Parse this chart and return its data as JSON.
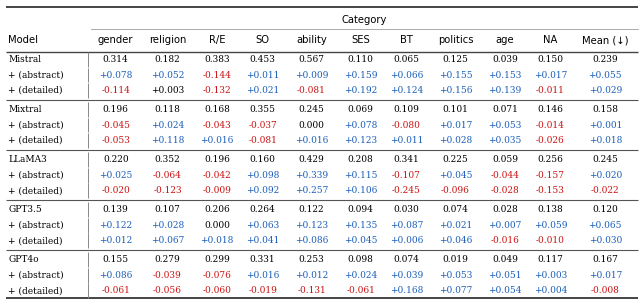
{
  "title": "Category",
  "col_header": [
    "Model",
    "gender",
    "religion",
    "R/E",
    "SO",
    "ability",
    "SES",
    "BT",
    "politics",
    "age",
    "NA",
    "Mean (↓)"
  ],
  "rows": [
    [
      "Mistral",
      "0.314",
      "0.182",
      "0.383",
      "0.453",
      "0.567",
      "0.110",
      "0.065",
      "0.125",
      "0.039",
      "0.150",
      "0.239"
    ],
    [
      "+ (abstract)",
      "+0.078",
      "+0.052",
      "-0.144",
      "+0.011",
      "+0.009",
      "+0.159",
      "+0.066",
      "+0.155",
      "+0.153",
      "+0.017",
      "+0.055"
    ],
    [
      "+ (detailed)",
      "-0.114",
      "+0.003",
      "-0.132",
      "+0.021",
      "-0.081",
      "+0.192",
      "+0.124",
      "+0.156",
      "+0.139",
      "-0.011",
      "+0.029"
    ],
    [
      "Mixtral",
      "0.196",
      "0.118",
      "0.168",
      "0.355",
      "0.245",
      "0.069",
      "0.109",
      "0.101",
      "0.071",
      "0.146",
      "0.158"
    ],
    [
      "+ (abstract)",
      "-0.045",
      "+0.024",
      "-0.043",
      "-0.037",
      "0.000",
      "+0.078",
      "-0.080",
      "+0.017",
      "+0.053",
      "-0.014",
      "+0.001"
    ],
    [
      "+ (detailed)",
      "-0.053",
      "+0.118",
      "+0.016",
      "-0.081",
      "+0.016",
      "+0.123",
      "+0.011",
      "+0.028",
      "+0.035",
      "-0.026",
      "+0.018"
    ],
    [
      "LLaMA3",
      "0.220",
      "0.352",
      "0.196",
      "0.160",
      "0.429",
      "0.208",
      "0.341",
      "0.225",
      "0.059",
      "0.256",
      "0.245"
    ],
    [
      "+ (abstract)",
      "+0.025",
      "-0.064",
      "-0.042",
      "+0.098",
      "+0.339",
      "+0.115",
      "-0.107",
      "+0.045",
      "-0.044",
      "-0.157",
      "+0.020"
    ],
    [
      "+ (detailed)",
      "-0.020",
      "-0.123",
      "-0.009",
      "+0.092",
      "+0.257",
      "+0.106",
      "-0.245",
      "-0.096",
      "-0.028",
      "-0.153",
      "-0.022"
    ],
    [
      "GPT3.5",
      "0.139",
      "0.107",
      "0.206",
      "0.264",
      "0.122",
      "0.094",
      "0.030",
      "0.074",
      "0.028",
      "0.138",
      "0.120"
    ],
    [
      "+ (abstract)",
      "+0.122",
      "+0.028",
      "0.000",
      "+0.063",
      "+0.123",
      "+0.135",
      "+0.087",
      "+0.021",
      "+0.007",
      "+0.059",
      "+0.065"
    ],
    [
      "+ (detailed)",
      "+0.012",
      "+0.067",
      "+0.018",
      "+0.041",
      "+0.086",
      "+0.045",
      "+0.006",
      "+0.046",
      "-0.016",
      "-0.010",
      "+0.030"
    ],
    [
      "GPT4o",
      "0.155",
      "0.279",
      "0.299",
      "0.331",
      "0.253",
      "0.098",
      "0.074",
      "0.019",
      "0.049",
      "0.117",
      "0.167"
    ],
    [
      "+ (abstract)",
      "+0.086",
      "-0.039",
      "-0.076",
      "+0.016",
      "+0.012",
      "+0.024",
      "+0.039",
      "+0.053",
      "+0.051",
      "+0.003",
      "+0.017"
    ],
    [
      "+ (detailed)",
      "-0.061",
      "-0.056",
      "-0.060",
      "-0.019",
      "-0.131",
      "-0.061",
      "+0.168",
      "+0.077",
      "+0.054",
      "+0.004",
      "-0.008"
    ]
  ],
  "row_colors": [
    [
      "black",
      "black",
      "black",
      "black",
      "black",
      "black",
      "black",
      "black",
      "black",
      "black",
      "black",
      "black"
    ],
    [
      "black",
      "blue",
      "blue",
      "red",
      "blue",
      "blue",
      "blue",
      "blue",
      "blue",
      "blue",
      "blue",
      "blue"
    ],
    [
      "black",
      "red",
      "black",
      "red",
      "blue",
      "red",
      "blue",
      "blue",
      "blue",
      "blue",
      "red",
      "blue"
    ],
    [
      "black",
      "black",
      "black",
      "black",
      "black",
      "black",
      "black",
      "black",
      "black",
      "black",
      "black",
      "black"
    ],
    [
      "black",
      "red",
      "blue",
      "red",
      "red",
      "black",
      "blue",
      "red",
      "blue",
      "blue",
      "red",
      "blue"
    ],
    [
      "black",
      "red",
      "blue",
      "blue",
      "red",
      "blue",
      "blue",
      "blue",
      "blue",
      "blue",
      "red",
      "blue"
    ],
    [
      "black",
      "black",
      "black",
      "black",
      "black",
      "black",
      "black",
      "black",
      "black",
      "black",
      "black",
      "black"
    ],
    [
      "black",
      "blue",
      "red",
      "red",
      "blue",
      "blue",
      "blue",
      "red",
      "blue",
      "red",
      "red",
      "blue"
    ],
    [
      "black",
      "red",
      "red",
      "red",
      "blue",
      "blue",
      "blue",
      "red",
      "red",
      "red",
      "red",
      "red"
    ],
    [
      "black",
      "black",
      "black",
      "black",
      "black",
      "black",
      "black",
      "black",
      "black",
      "black",
      "black",
      "black"
    ],
    [
      "black",
      "blue",
      "blue",
      "black",
      "blue",
      "blue",
      "blue",
      "blue",
      "blue",
      "blue",
      "blue",
      "blue"
    ],
    [
      "black",
      "blue",
      "blue",
      "blue",
      "blue",
      "blue",
      "blue",
      "blue",
      "blue",
      "red",
      "red",
      "blue"
    ],
    [
      "black",
      "black",
      "black",
      "black",
      "black",
      "black",
      "black",
      "black",
      "black",
      "black",
      "black",
      "black"
    ],
    [
      "black",
      "blue",
      "red",
      "red",
      "blue",
      "blue",
      "blue",
      "blue",
      "blue",
      "blue",
      "blue",
      "blue"
    ],
    [
      "black",
      "red",
      "red",
      "red",
      "red",
      "red",
      "red",
      "blue",
      "blue",
      "blue",
      "blue",
      "red"
    ]
  ],
  "figsize": [
    6.4,
    3.06
  ],
  "dpi": 100
}
